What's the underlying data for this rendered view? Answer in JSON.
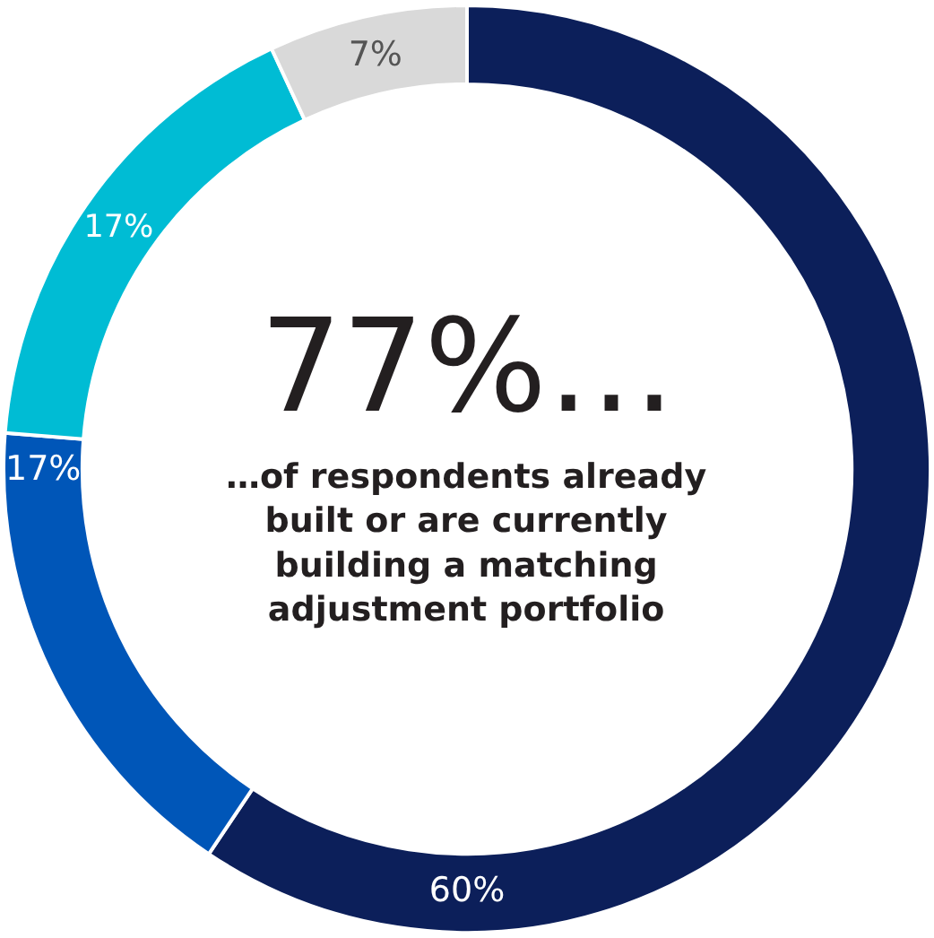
{
  "chart_data": {
    "type": "donut",
    "categories": [
      null,
      null,
      null,
      null
    ],
    "values": [
      60,
      17,
      17,
      7
    ],
    "colors": [
      "#0c1f5a",
      "#0056b8",
      "#00bcd4",
      "#d9d9d9"
    ],
    "value_labels": [
      "60%",
      "17%",
      "17%",
      "7%"
    ],
    "legend": false,
    "annotations": [
      "77%…",
      "…of respondents already built or are currently building a matching adjustment portfolio"
    ]
  }
}
